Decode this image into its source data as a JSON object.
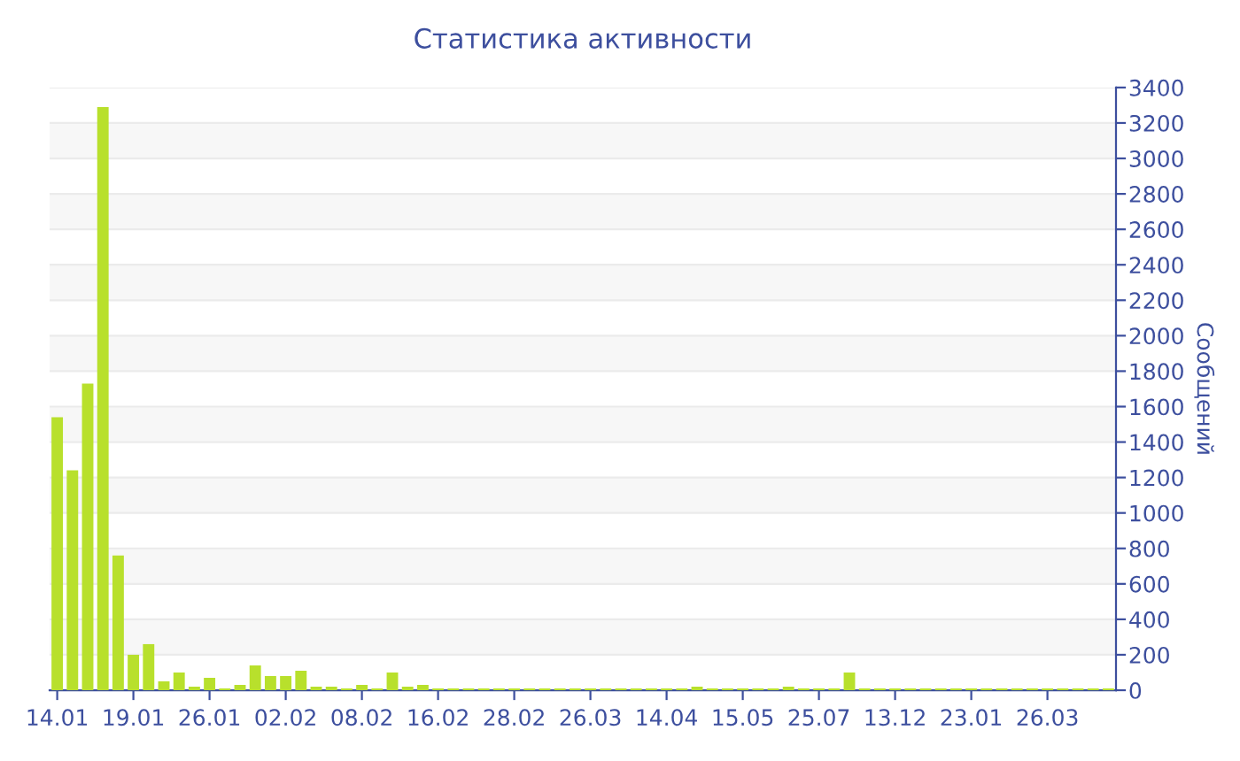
{
  "chart_data": {
    "type": "bar",
    "title": "Статистика активности",
    "ylabel": "Сообщений",
    "categories": [
      "14.01",
      null,
      null,
      null,
      null,
      "19.01",
      null,
      null,
      null,
      null,
      "26.01",
      null,
      null,
      null,
      null,
      "02.02",
      null,
      null,
      null,
      null,
      "08.02",
      null,
      null,
      null,
      null,
      "16.02",
      null,
      null,
      null,
      null,
      "28.02",
      null,
      null,
      null,
      null,
      "26.03",
      null,
      null,
      null,
      null,
      "14.04",
      null,
      null,
      null,
      null,
      "15.05",
      null,
      null,
      null,
      null,
      "25.07",
      null,
      null,
      null,
      null,
      "13.12",
      null,
      null,
      null,
      null,
      "23.01",
      null,
      null,
      null,
      null,
      "26.03",
      null,
      null,
      null,
      null
    ],
    "values": [
      1540,
      1240,
      1730,
      3290,
      760,
      200,
      260,
      50,
      100,
      20,
      70,
      10,
      30,
      140,
      80,
      80,
      110,
      20,
      20,
      10,
      30,
      10,
      100,
      20,
      30,
      10,
      10,
      10,
      10,
      10,
      10,
      10,
      10,
      10,
      10,
      10,
      10,
      10,
      10,
      10,
      10,
      10,
      20,
      10,
      10,
      10,
      10,
      10,
      20,
      10,
      10,
      10,
      100,
      10,
      10,
      10,
      10,
      10,
      10,
      10,
      10,
      10,
      10,
      10,
      10,
      10,
      10,
      10,
      10,
      10
    ],
    "color": "#b8e02c",
    "ylim": [
      0,
      3400
    ],
    "yticks": [
      0,
      200,
      400,
      600,
      800,
      1000,
      1200,
      1400,
      1600,
      1800,
      2000,
      2200,
      2400,
      2600,
      2800,
      3000,
      3200,
      3400
    ],
    "grid": "y"
  }
}
